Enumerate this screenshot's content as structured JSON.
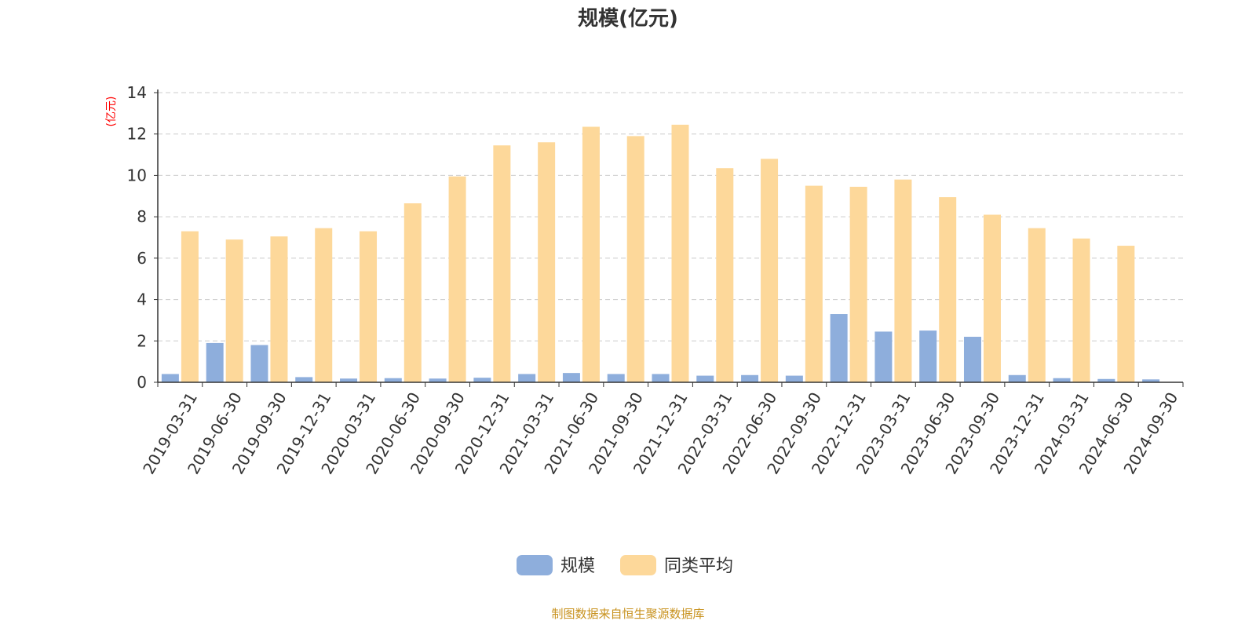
{
  "chart_data": {
    "type": "bar",
    "title": "规模(亿元)",
    "ylabel": "(亿元)",
    "ylim": [
      0,
      14
    ],
    "yticks": [
      0,
      2,
      4,
      6,
      8,
      10,
      12,
      14
    ],
    "grid": true,
    "legend_position": "bottom",
    "categories": [
      "2019-03-31",
      "2019-06-30",
      "2019-09-30",
      "2019-12-31",
      "2020-03-31",
      "2020-06-30",
      "2020-09-30",
      "2020-12-31",
      "2021-03-31",
      "2021-06-30",
      "2021-09-30",
      "2021-12-31",
      "2022-03-31",
      "2022-06-30",
      "2022-09-30",
      "2022-12-31",
      "2023-03-31",
      "2023-06-30",
      "2023-09-30",
      "2023-12-31",
      "2024-03-31",
      "2024-06-30",
      "2024-09-30"
    ],
    "series": [
      {
        "name": "规模",
        "color": "#8eaedc",
        "values": [
          0.4,
          1.9,
          1.8,
          0.25,
          0.18,
          0.2,
          0.18,
          0.22,
          0.4,
          0.45,
          0.4,
          0.4,
          0.32,
          0.35,
          0.32,
          3.3,
          2.45,
          2.5,
          2.2,
          0.35,
          0.2,
          0.16,
          0.14
        ]
      },
      {
        "name": "同类平均",
        "color": "#fdd89a",
        "values": [
          7.3,
          6.9,
          7.05,
          7.45,
          7.3,
          8.65,
          9.95,
          11.45,
          11.6,
          12.35,
          11.9,
          12.45,
          10.35,
          10.8,
          9.5,
          9.45,
          9.8,
          8.95,
          8.1,
          7.45,
          6.95,
          6.6,
          null
        ]
      }
    ],
    "source_note": "制图数据来自恒生聚源数据库"
  }
}
